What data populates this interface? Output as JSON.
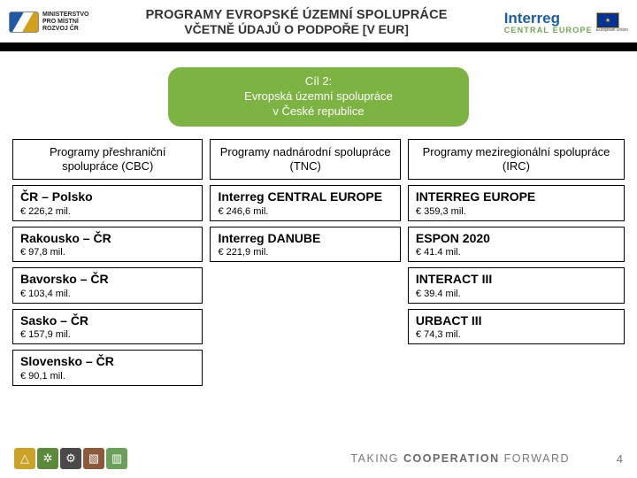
{
  "header": {
    "ministry_lines": [
      "MINISTERSTVO",
      "PRO MÍSTNÍ",
      "ROZVOJ ČR"
    ],
    "title_line1": "PROGRAMY EVROPSKÉ ÚZEMNÍ SPOLUPRÁCE",
    "title_line2": "VČETNĚ ÚDAJŮ O PODPOŘE [V EUR]",
    "interreg": "Interreg",
    "interreg_sub": "CENTRAL EUROPE",
    "eu_caption": "European Union"
  },
  "goal": {
    "line1": "Cíl 2:",
    "line2": "Evropská územní spolupráce",
    "line3": "v České republice"
  },
  "columns": [
    {
      "header": "Programy přeshraniční spolupráce (CBC)",
      "items": [
        {
          "name": "ČR – Polsko",
          "amount": "€ 226,2 mil."
        },
        {
          "name": "Rakousko – ČR",
          "amount": "€ 97,8 mil."
        },
        {
          "name": "Bavorsko – ČR",
          "amount": "€ 103,4 mil."
        },
        {
          "name": "Sasko – ČR",
          "amount": "€ 157,9 mil."
        },
        {
          "name": "Slovensko – ČR",
          "amount": "€ 90,1 mil."
        }
      ]
    },
    {
      "header": "Programy nadnárodní spolupráce (TNC)",
      "items": [
        {
          "name": "Interreg CENTRAL EUROPE",
          "amount": "€ 246,6 mil."
        },
        {
          "name": "Interreg DANUBE",
          "amount": "€ 221,9 mil."
        }
      ]
    },
    {
      "header": "Programy meziregionální spolupráce (IRC)",
      "items": [
        {
          "name": "INTERREG EUROPE",
          "amount": "€ 359,3 mil."
        },
        {
          "name": "ESPON 2020",
          "amount": "€ 41.4 mil."
        },
        {
          "name": "INTERACT III",
          "amount": "€ 39.4 mil."
        },
        {
          "name": "URBACT III",
          "amount": "€ 74,3 mil."
        }
      ]
    }
  ],
  "footer": {
    "badges": [
      {
        "bg": "#c9a227",
        "glyph": "△"
      },
      {
        "bg": "#5b8a3a",
        "glyph": "✲"
      },
      {
        "bg": "#4a4a4a",
        "glyph": "⚙"
      },
      {
        "bg": "#8a5a3a",
        "glyph": "▧"
      },
      {
        "bg": "#6aa05a",
        "glyph": "▥"
      }
    ],
    "tagline_pre": "TAKING ",
    "tagline_bold": "COOPERATION",
    "tagline_post": " FORWARD",
    "page": "4"
  },
  "colors": {
    "goal_bg": "#7cb342",
    "interreg_blue": "#1b5fa6",
    "interreg_green": "#6fa84f"
  }
}
